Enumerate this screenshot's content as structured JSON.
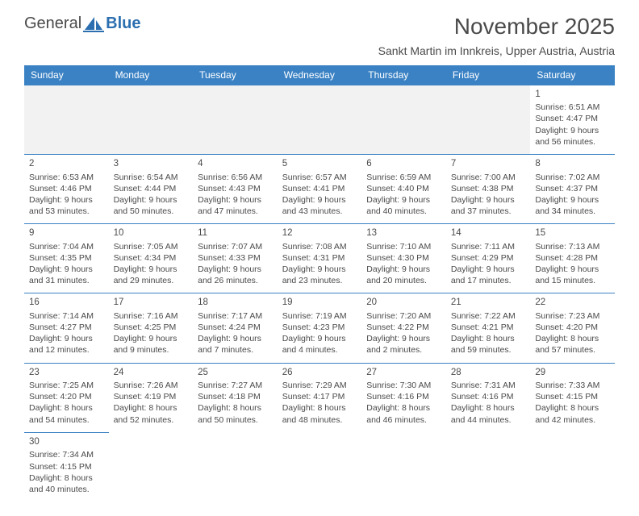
{
  "logo": {
    "text1": "General",
    "text2": "Blue"
  },
  "title": "November 2025",
  "subtitle": "Sankt Martin im Innkreis, Upper Austria, Austria",
  "colors": {
    "header_bg": "#3b82c4",
    "header_text": "#ffffff",
    "border": "#3b82c4",
    "text": "#4a4a4a",
    "empty_bg": "#f2f2f2",
    "page_bg": "#ffffff",
    "logo_blue": "#2b6fb0"
  },
  "columns": [
    "Sunday",
    "Monday",
    "Tuesday",
    "Wednesday",
    "Thursday",
    "Friday",
    "Saturday"
  ],
  "weeks": [
    [
      {
        "empty": true
      },
      {
        "empty": true
      },
      {
        "empty": true
      },
      {
        "empty": true
      },
      {
        "empty": true
      },
      {
        "empty": true
      },
      {
        "day": "1",
        "sunrise": "Sunrise: 6:51 AM",
        "sunset": "Sunset: 4:47 PM",
        "daylight": "Daylight: 9 hours and 56 minutes."
      }
    ],
    [
      {
        "day": "2",
        "sunrise": "Sunrise: 6:53 AM",
        "sunset": "Sunset: 4:46 PM",
        "daylight": "Daylight: 9 hours and 53 minutes."
      },
      {
        "day": "3",
        "sunrise": "Sunrise: 6:54 AM",
        "sunset": "Sunset: 4:44 PM",
        "daylight": "Daylight: 9 hours and 50 minutes."
      },
      {
        "day": "4",
        "sunrise": "Sunrise: 6:56 AM",
        "sunset": "Sunset: 4:43 PM",
        "daylight": "Daylight: 9 hours and 47 minutes."
      },
      {
        "day": "5",
        "sunrise": "Sunrise: 6:57 AM",
        "sunset": "Sunset: 4:41 PM",
        "daylight": "Daylight: 9 hours and 43 minutes."
      },
      {
        "day": "6",
        "sunrise": "Sunrise: 6:59 AM",
        "sunset": "Sunset: 4:40 PM",
        "daylight": "Daylight: 9 hours and 40 minutes."
      },
      {
        "day": "7",
        "sunrise": "Sunrise: 7:00 AM",
        "sunset": "Sunset: 4:38 PM",
        "daylight": "Daylight: 9 hours and 37 minutes."
      },
      {
        "day": "8",
        "sunrise": "Sunrise: 7:02 AM",
        "sunset": "Sunset: 4:37 PM",
        "daylight": "Daylight: 9 hours and 34 minutes."
      }
    ],
    [
      {
        "day": "9",
        "sunrise": "Sunrise: 7:04 AM",
        "sunset": "Sunset: 4:35 PM",
        "daylight": "Daylight: 9 hours and 31 minutes."
      },
      {
        "day": "10",
        "sunrise": "Sunrise: 7:05 AM",
        "sunset": "Sunset: 4:34 PM",
        "daylight": "Daylight: 9 hours and 29 minutes."
      },
      {
        "day": "11",
        "sunrise": "Sunrise: 7:07 AM",
        "sunset": "Sunset: 4:33 PM",
        "daylight": "Daylight: 9 hours and 26 minutes."
      },
      {
        "day": "12",
        "sunrise": "Sunrise: 7:08 AM",
        "sunset": "Sunset: 4:31 PM",
        "daylight": "Daylight: 9 hours and 23 minutes."
      },
      {
        "day": "13",
        "sunrise": "Sunrise: 7:10 AM",
        "sunset": "Sunset: 4:30 PM",
        "daylight": "Daylight: 9 hours and 20 minutes."
      },
      {
        "day": "14",
        "sunrise": "Sunrise: 7:11 AM",
        "sunset": "Sunset: 4:29 PM",
        "daylight": "Daylight: 9 hours and 17 minutes."
      },
      {
        "day": "15",
        "sunrise": "Sunrise: 7:13 AM",
        "sunset": "Sunset: 4:28 PM",
        "daylight": "Daylight: 9 hours and 15 minutes."
      }
    ],
    [
      {
        "day": "16",
        "sunrise": "Sunrise: 7:14 AM",
        "sunset": "Sunset: 4:27 PM",
        "daylight": "Daylight: 9 hours and 12 minutes."
      },
      {
        "day": "17",
        "sunrise": "Sunrise: 7:16 AM",
        "sunset": "Sunset: 4:25 PM",
        "daylight": "Daylight: 9 hours and 9 minutes."
      },
      {
        "day": "18",
        "sunrise": "Sunrise: 7:17 AM",
        "sunset": "Sunset: 4:24 PM",
        "daylight": "Daylight: 9 hours and 7 minutes."
      },
      {
        "day": "19",
        "sunrise": "Sunrise: 7:19 AM",
        "sunset": "Sunset: 4:23 PM",
        "daylight": "Daylight: 9 hours and 4 minutes."
      },
      {
        "day": "20",
        "sunrise": "Sunrise: 7:20 AM",
        "sunset": "Sunset: 4:22 PM",
        "daylight": "Daylight: 9 hours and 2 minutes."
      },
      {
        "day": "21",
        "sunrise": "Sunrise: 7:22 AM",
        "sunset": "Sunset: 4:21 PM",
        "daylight": "Daylight: 8 hours and 59 minutes."
      },
      {
        "day": "22",
        "sunrise": "Sunrise: 7:23 AM",
        "sunset": "Sunset: 4:20 PM",
        "daylight": "Daylight: 8 hours and 57 minutes."
      }
    ],
    [
      {
        "day": "23",
        "sunrise": "Sunrise: 7:25 AM",
        "sunset": "Sunset: 4:20 PM",
        "daylight": "Daylight: 8 hours and 54 minutes."
      },
      {
        "day": "24",
        "sunrise": "Sunrise: 7:26 AM",
        "sunset": "Sunset: 4:19 PM",
        "daylight": "Daylight: 8 hours and 52 minutes."
      },
      {
        "day": "25",
        "sunrise": "Sunrise: 7:27 AM",
        "sunset": "Sunset: 4:18 PM",
        "daylight": "Daylight: 8 hours and 50 minutes."
      },
      {
        "day": "26",
        "sunrise": "Sunrise: 7:29 AM",
        "sunset": "Sunset: 4:17 PM",
        "daylight": "Daylight: 8 hours and 48 minutes."
      },
      {
        "day": "27",
        "sunrise": "Sunrise: 7:30 AM",
        "sunset": "Sunset: 4:16 PM",
        "daylight": "Daylight: 8 hours and 46 minutes."
      },
      {
        "day": "28",
        "sunrise": "Sunrise: 7:31 AM",
        "sunset": "Sunset: 4:16 PM",
        "daylight": "Daylight: 8 hours and 44 minutes."
      },
      {
        "day": "29",
        "sunrise": "Sunrise: 7:33 AM",
        "sunset": "Sunset: 4:15 PM",
        "daylight": "Daylight: 8 hours and 42 minutes."
      }
    ],
    [
      {
        "day": "30",
        "sunrise": "Sunrise: 7:34 AM",
        "sunset": "Sunset: 4:15 PM",
        "daylight": "Daylight: 8 hours and 40 minutes."
      },
      {
        "blank": true
      },
      {
        "blank": true
      },
      {
        "blank": true
      },
      {
        "blank": true
      },
      {
        "blank": true
      },
      {
        "blank": true
      }
    ]
  ]
}
